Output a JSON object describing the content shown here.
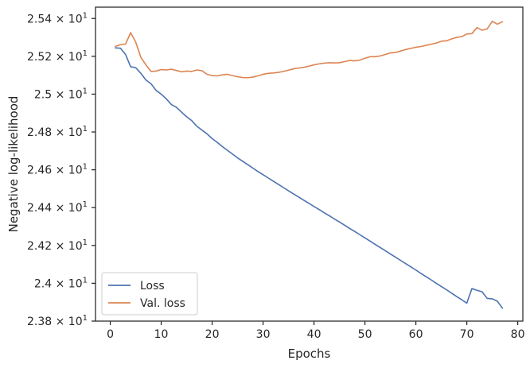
{
  "chart_data": {
    "type": "line",
    "xlabel": "Epochs",
    "ylabel": "Negative log-likelihood",
    "xlim": [
      -2.9,
      81
    ],
    "ylim": [
      23.8,
      25.46
    ],
    "xticks": [
      0,
      10,
      20,
      30,
      40,
      50,
      60,
      70,
      80
    ],
    "xtick_labels": [
      "0",
      "10",
      "20",
      "30",
      "40",
      "50",
      "60",
      "70",
      "80"
    ],
    "yticks": [
      23.8,
      24.0,
      24.2,
      24.4,
      24.6,
      24.8,
      25.0,
      25.2,
      25.4
    ],
    "ytick_mantissas": [
      "2.38",
      "2.4",
      "2.42",
      "2.44",
      "2.46",
      "2.48",
      "2.5",
      "2.52",
      "2.54"
    ],
    "ytick_base": "10",
    "ytick_exponent": "1",
    "legend_position": "lower-left",
    "grid": false,
    "series": [
      {
        "name": "Loss",
        "color": "#4c72b0",
        "x": [
          1,
          2,
          3,
          4,
          5,
          6,
          7,
          8,
          9,
          10,
          11,
          12,
          13,
          14,
          15,
          16,
          17,
          18,
          19,
          20,
          21,
          22,
          23,
          24,
          25,
          26,
          27,
          28,
          29,
          30,
          31,
          32,
          33,
          34,
          35,
          36,
          37,
          38,
          39,
          40,
          41,
          42,
          43,
          44,
          45,
          46,
          47,
          48,
          49,
          50,
          51,
          52,
          53,
          54,
          55,
          56,
          57,
          58,
          59,
          60,
          61,
          62,
          63,
          64,
          65,
          66,
          67,
          68,
          69,
          70,
          71,
          72,
          73,
          74,
          75,
          76,
          77
        ],
        "values": [
          25.245,
          25.243,
          25.21,
          25.145,
          25.14,
          25.11,
          25.075,
          25.055,
          25.02,
          25.0,
          24.975,
          24.945,
          24.93,
          24.905,
          24.88,
          24.86,
          24.83,
          24.81,
          24.79,
          24.765,
          24.745,
          24.723,
          24.703,
          24.683,
          24.663,
          24.645,
          24.627,
          24.609,
          24.591,
          24.574,
          24.557,
          24.54,
          24.523,
          24.506,
          24.489,
          24.472,
          24.456,
          24.439,
          24.423,
          24.406,
          24.39,
          24.373,
          24.357,
          24.34,
          24.324,
          24.307,
          24.29,
          24.274,
          24.257,
          24.24,
          24.223,
          24.206,
          24.189,
          24.172,
          24.155,
          24.138,
          24.121,
          24.104,
          24.087,
          24.07,
          24.052,
          24.035,
          24.018,
          24.0,
          23.983,
          23.966,
          23.948,
          23.93,
          23.913,
          23.895,
          23.972,
          23.963,
          23.955,
          23.92,
          23.918,
          23.905,
          23.868
        ]
      },
      {
        "name": "Val. loss",
        "color": "#dd8452",
        "x": [
          1,
          2,
          3,
          4,
          5,
          6,
          7,
          8,
          9,
          10,
          11,
          12,
          13,
          14,
          15,
          16,
          17,
          18,
          19,
          20,
          21,
          22,
          23,
          24,
          25,
          26,
          27,
          28,
          29,
          30,
          31,
          32,
          33,
          34,
          35,
          36,
          37,
          38,
          39,
          40,
          41,
          42,
          43,
          44,
          45,
          46,
          47,
          48,
          49,
          50,
          51,
          52,
          53,
          54,
          55,
          56,
          57,
          58,
          59,
          60,
          61,
          62,
          63,
          64,
          65,
          66,
          67,
          68,
          69,
          70,
          71,
          72,
          73,
          74,
          75,
          76,
          77
        ],
        "values": [
          25.252,
          25.262,
          25.265,
          25.325,
          25.275,
          25.195,
          25.155,
          25.12,
          25.122,
          25.13,
          25.128,
          25.132,
          25.125,
          25.118,
          25.122,
          25.12,
          25.128,
          25.124,
          25.105,
          25.098,
          25.097,
          25.102,
          25.105,
          25.098,
          25.092,
          25.088,
          25.087,
          25.09,
          25.097,
          25.105,
          25.11,
          25.112,
          25.115,
          25.12,
          25.127,
          25.134,
          25.138,
          25.142,
          25.148,
          25.155,
          25.16,
          25.164,
          25.166,
          25.165,
          25.166,
          25.172,
          25.178,
          25.176,
          25.18,
          25.19,
          25.198,
          25.198,
          25.202,
          25.21,
          25.218,
          25.22,
          25.228,
          25.236,
          25.242,
          25.248,
          25.252,
          25.258,
          25.264,
          25.27,
          25.28,
          25.282,
          25.292,
          25.3,
          25.304,
          25.318,
          25.32,
          25.352,
          25.338,
          25.345,
          25.385,
          25.37,
          25.383
        ]
      }
    ]
  }
}
